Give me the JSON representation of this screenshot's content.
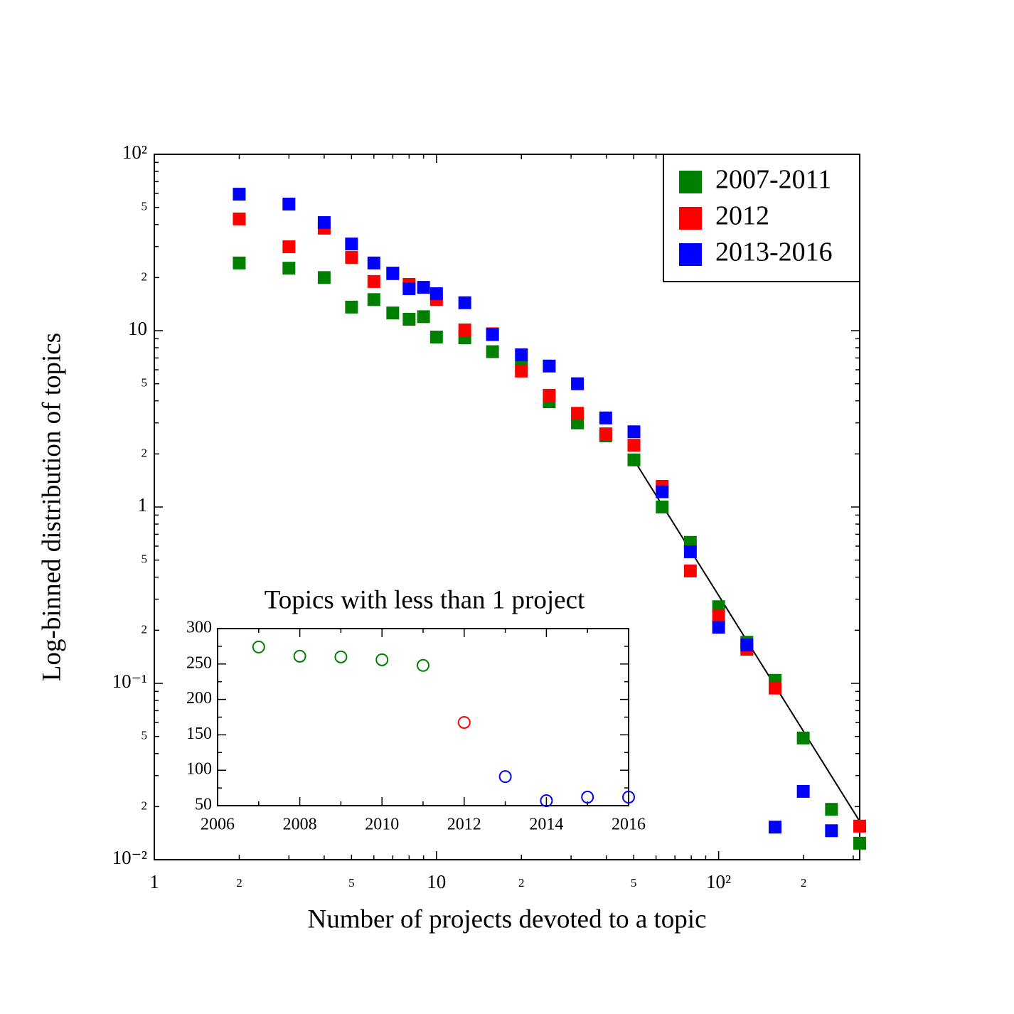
{
  "chart_data": [
    {
      "type": "scatter",
      "xlabel": "Number of projects devoted to a topic",
      "ylabel": "Log-binned distribution of topics",
      "xscale": "log",
      "yscale": "log",
      "xlim": [
        1,
        316.2
      ],
      "ylim": [
        0.01,
        100
      ],
      "xticks": [
        1,
        2,
        5,
        10,
        {
          "value": 20,
          "label": "2"
        },
        {
          "value": 50,
          "label": "5"
        },
        {
          "value": 100,
          "label": "10²"
        },
        {
          "value": 200,
          "label": "2"
        }
      ],
      "yticks": [
        {
          "value": 0.01,
          "label": "10⁻²"
        },
        {
          "value": 0.02,
          "label": "2"
        },
        {
          "value": 0.05,
          "label": "5"
        },
        {
          "value": 0.1,
          "label": "10⁻¹"
        },
        {
          "value": 0.2,
          "label": "2"
        },
        {
          "value": 0.5,
          "label": "5"
        },
        1,
        2,
        5,
        10,
        {
          "value": 20,
          "label": "2"
        },
        {
          "value": 50,
          "label": "5"
        },
        {
          "value": 100,
          "label": "10²"
        }
      ],
      "legend": "upper right",
      "marker": "square",
      "x": [
        2,
        3,
        4,
        5,
        6,
        7,
        8,
        9,
        10,
        12.6,
        15.8,
        20,
        25.1,
        31.6,
        39.8,
        50.1,
        63.1,
        79.4,
        100,
        125.9,
        158.5,
        199.5,
        251.2,
        316.2
      ],
      "series": [
        {
          "name": "2007-2011",
          "color": "#008000",
          "values": [
            24.2,
            22.6,
            20.0,
            13.6,
            15.0,
            12.6,
            11.6,
            12.0,
            9.2,
            9.1,
            7.6,
            6.2,
            3.95,
            3.0,
            2.53,
            1.85,
            1.0,
            0.63,
            0.272,
            0.171,
            0.104,
            0.049,
            0.0193,
            0.0124
          ]
        },
        {
          "name": "2012",
          "color": "#ff0000",
          "values": [
            43,
            29.9,
            38.1,
            26.0,
            19.0,
            21.0,
            18.3,
            null,
            15.0,
            10.1,
            9.6,
            5.9,
            4.3,
            3.4,
            2.6,
            2.24,
            1.31,
            0.434,
            0.242,
            0.156,
            0.094,
            null,
            null,
            0.0155
          ]
        },
        {
          "name": "2013-2016",
          "color": "#0000ff",
          "values": [
            59.4,
            52.2,
            41.0,
            31.0,
            24.2,
            21.2,
            17.3,
            17.6,
            16.2,
            14.4,
            9.5,
            7.3,
            6.3,
            5.0,
            3.2,
            2.67,
            1.22,
            0.557,
            0.208,
            0.165,
            0.0153,
            0.0244,
            0.0146,
            null
          ]
        }
      ],
      "lines": [
        {
          "x": [
            50.1,
            316.2
          ],
          "y": [
            1.85,
            0.0165
          ],
          "color": "#000000"
        }
      ]
    },
    {
      "type": "scatter",
      "title": "Topics with less than 1 project",
      "marker": "open-circle",
      "xlim": [
        2006,
        2016
      ],
      "ylim": [
        50,
        300
      ],
      "xticks": [
        2006,
        2008,
        2010,
        2012,
        2014,
        2016
      ],
      "yticks": [
        50,
        100,
        150,
        200,
        250,
        300
      ],
      "x": [
        2007,
        2008,
        2009,
        2010,
        2011,
        2012,
        2013,
        2014,
        2015,
        2016
      ],
      "values": [
        274,
        261,
        260,
        256,
        248,
        167.5,
        91,
        57,
        62,
        62
      ],
      "colors": [
        "#008000",
        "#008000",
        "#008000",
        "#008000",
        "#008000",
        "#ff0000",
        "#0000ff",
        "#0000ff",
        "#0000ff",
        "#0000ff"
      ]
    }
  ]
}
